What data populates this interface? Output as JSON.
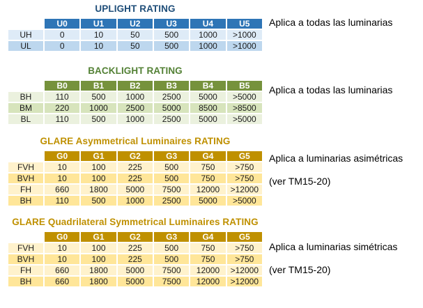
{
  "tables": [
    {
      "title": "UPLIGHT RATING",
      "columns": [
        "U0",
        "U1",
        "U2",
        "U3",
        "U4",
        "U5"
      ],
      "rows": [
        {
          "label": "UH",
          "values": [
            "0",
            "10",
            "50",
            "500",
            "1000",
            ">1000"
          ]
        },
        {
          "label": "UL",
          "values": [
            "0",
            "10",
            "50",
            "500",
            "1000",
            ">1000"
          ]
        }
      ],
      "colors": {
        "title": "#1F4E79",
        "header_bg": "#2E75B6",
        "header_text": "#FFFFFF",
        "row_light": "#DEEBF7",
        "row_dark": "#BDD7EE"
      }
    },
    {
      "title": "BACKLIGHT RATING",
      "columns": [
        "B0",
        "B1",
        "B2",
        "B3",
        "B4",
        "B5"
      ],
      "rows": [
        {
          "label": "BH",
          "values": [
            "110",
            "500",
            "1000",
            "2500",
            "5000",
            ">5000"
          ]
        },
        {
          "label": "BM",
          "values": [
            "220",
            "1000",
            "2500",
            "5000",
            "8500",
            ">8500"
          ]
        },
        {
          "label": "BL",
          "values": [
            "110",
            "500",
            "1000",
            "2500",
            "5000",
            ">5000"
          ]
        }
      ],
      "colors": {
        "title": "#538135",
        "header_bg": "#76923C",
        "header_text": "#FFFFFF",
        "row_light": "#EBF1DE",
        "row_dark": "#D7E4BC"
      }
    },
    {
      "title": "GLARE Asymmetrical Luminaires RATING",
      "columns": [
        "G0",
        "G1",
        "G2",
        "G3",
        "G4",
        "G5"
      ],
      "rows": [
        {
          "label": "FVH",
          "values": [
            "10",
            "100",
            "225",
            "500",
            "750",
            ">750"
          ]
        },
        {
          "label": "BVH",
          "values": [
            "10",
            "100",
            "225",
            "500",
            "750",
            ">750"
          ]
        },
        {
          "label": "FH",
          "values": [
            "660",
            "1800",
            "5000",
            "7500",
            "12000",
            ">12000"
          ]
        },
        {
          "label": "BH",
          "values": [
            "110",
            "500",
            "1000",
            "2500",
            "5000",
            ">5000"
          ]
        }
      ],
      "colors": {
        "title": "#BF9000",
        "header_bg": "#BF9000",
        "header_text": "#FFFFFF",
        "row_light": "#FFF2CC",
        "row_dark": "#FFE699"
      }
    },
    {
      "title": "GLARE Quadrilateral Symmetrical Luminaires RATING",
      "columns": [
        "G0",
        "G1",
        "G2",
        "G3",
        "G4",
        "G5"
      ],
      "rows": [
        {
          "label": "FVH",
          "values": [
            "10",
            "100",
            "225",
            "500",
            "750",
            ">750"
          ]
        },
        {
          "label": "BVH",
          "values": [
            "10",
            "100",
            "225",
            "500",
            "750",
            ">750"
          ]
        },
        {
          "label": "FH",
          "values": [
            "660",
            "1800",
            "5000",
            "7500",
            "12000",
            ">12000"
          ]
        },
        {
          "label": "BH",
          "values": [
            "660",
            "1800",
            "5000",
            "7500",
            "12000",
            ">12000"
          ]
        }
      ],
      "colors": {
        "title": "#BF9000",
        "header_bg": "#BF9000",
        "header_text": "#FFFFFF",
        "row_light": "#FFF2CC",
        "row_dark": "#FFE699"
      }
    }
  ],
  "annotations": [
    {
      "text": "Aplica a todas las luminarias"
    },
    {
      "text": "Aplica a todas las luminarias"
    },
    {
      "text": "Aplica a luminarias asimétricas"
    },
    {
      "text": "(ver TM15-20)"
    },
    {
      "text": "Aplica a luminarias simétricas"
    },
    {
      "text": "(ver TM15-20)"
    }
  ]
}
